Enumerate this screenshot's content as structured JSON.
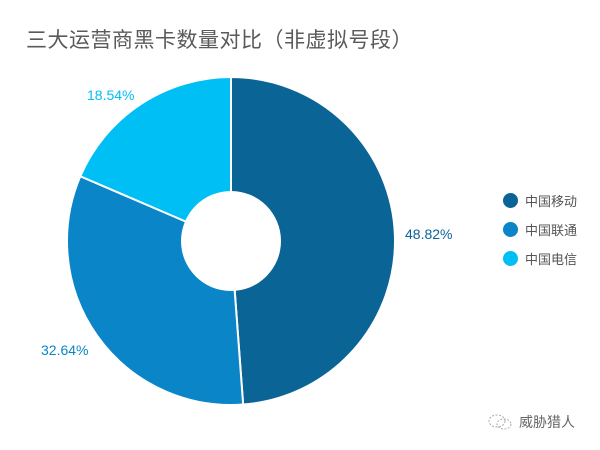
{
  "title": "三大运营商黑卡数量对比（非虚拟号段）",
  "chart_data": {
    "type": "pie",
    "donut": true,
    "title": "三大运营商黑卡数量对比（非虚拟号段）",
    "categories": [
      "中国移动",
      "中国联通",
      "中国电信"
    ],
    "values": [
      48.82,
      32.64,
      18.54
    ],
    "labels": [
      "48.82%",
      "32.64%",
      "18.54%"
    ],
    "colors": [
      "#0b6496",
      "#0a85c8",
      "#00bff5"
    ],
    "legend_position": "right",
    "start_angle": "12 o'clock, clockwise"
  },
  "legend": [
    {
      "label": "中国移动",
      "color": "#0b6496"
    },
    {
      "label": "中国联通",
      "color": "#0a85c8"
    },
    {
      "label": "中国电信",
      "color": "#00bff5"
    }
  ],
  "watermark": {
    "text": "威胁猎人",
    "icon": "wechat-icon"
  }
}
